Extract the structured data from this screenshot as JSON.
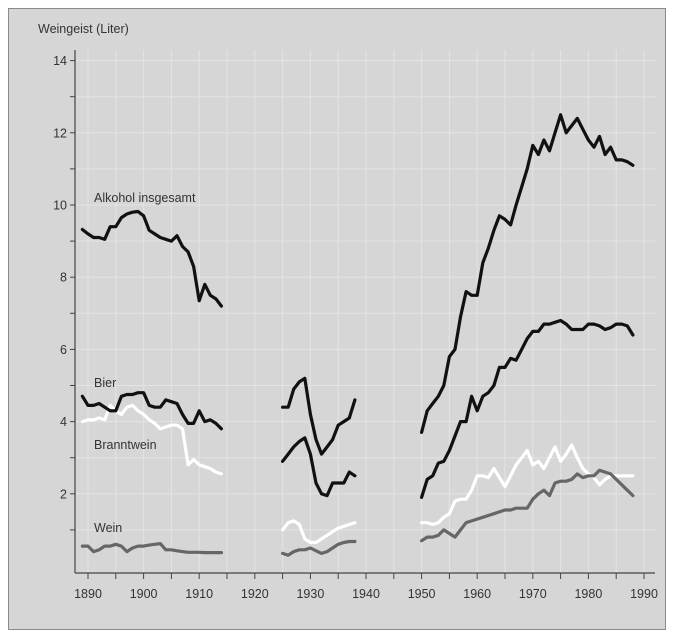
{
  "chart_data": {
    "type": "line",
    "title": "",
    "ylabel": "Weingeist (Liter)",
    "xlabel": "",
    "xlim": [
      1888,
      1992
    ],
    "ylim": [
      0,
      14.5
    ],
    "x_ticks": [
      1890,
      1900,
      1910,
      1920,
      1930,
      1940,
      1950,
      1960,
      1970,
      1980,
      1990
    ],
    "y_ticks": [
      2,
      4,
      6,
      8,
      10,
      12,
      14
    ],
    "grid": true,
    "legend": "inline labels",
    "series": [
      {
        "name": "Alkohol insgesamt",
        "color": "#111111",
        "segments": [
          {
            "start": 1889,
            "values": [
              9.32,
              9.2,
              9.1,
              9.1,
              9.05,
              9.4,
              9.4,
              9.65,
              9.75,
              9.8,
              9.82,
              9.7,
              9.3,
              9.2,
              9.1,
              9.05,
              9.0,
              9.15,
              8.85,
              8.7,
              8.3,
              7.35,
              7.8,
              7.5,
              7.4,
              7.2
            ]
          },
          {
            "start": 1925,
            "values": [
              4.4,
              4.4,
              4.9,
              5.1,
              5.2,
              4.2,
              3.5,
              3.1,
              3.3,
              3.5,
              3.9,
              4.0,
              4.1,
              4.6
            ]
          },
          {
            "start": 1950,
            "values": [
              3.7,
              4.3,
              4.5,
              4.7,
              5.0,
              5.8,
              6.0,
              6.9,
              7.6,
              7.5,
              7.5,
              8.4,
              8.8,
              9.3,
              9.7,
              9.6,
              9.45,
              10.0,
              10.5,
              11.0,
              11.65,
              11.4,
              11.8,
              11.5,
              12.0,
              12.5,
              12.0,
              12.2,
              12.4,
              12.1,
              11.8,
              11.6,
              11.9,
              11.4,
              11.6,
              11.25,
              11.25,
              11.2,
              11.1
            ]
          }
        ]
      },
      {
        "name": "Bier",
        "color": "#111111",
        "segments": [
          {
            "start": 1889,
            "values": [
              4.7,
              4.45,
              4.45,
              4.5,
              4.4,
              4.3,
              4.3,
              4.7,
              4.75,
              4.75,
              4.8,
              4.8,
              4.45,
              4.4,
              4.4,
              4.6,
              4.55,
              4.5,
              4.2,
              3.95,
              3.95,
              4.3,
              4.0,
              4.05,
              3.95,
              3.8
            ]
          },
          {
            "start": 1925,
            "values": [
              2.9,
              3.1,
              3.3,
              3.45,
              3.55,
              3.1,
              2.3,
              2.0,
              1.95,
              2.3,
              2.3,
              2.3,
              2.6,
              2.5
            ]
          },
          {
            "start": 1950,
            "values": [
              1.9,
              2.4,
              2.5,
              2.85,
              2.9,
              3.2,
              3.6,
              4.0,
              4.0,
              4.7,
              4.3,
              4.7,
              4.8,
              5.0,
              5.5,
              5.5,
              5.75,
              5.7,
              6.0,
              6.3,
              6.5,
              6.5,
              6.7,
              6.7,
              6.75,
              6.8,
              6.7,
              6.55,
              6.55,
              6.55,
              6.7,
              6.7,
              6.65,
              6.55,
              6.6,
              6.7,
              6.7,
              6.65,
              6.4
            ]
          }
        ]
      },
      {
        "name": "Branntwein",
        "color": "#ffffff",
        "segments": [
          {
            "start": 1889,
            "values": [
              4.0,
              4.05,
              4.05,
              4.1,
              4.05,
              4.45,
              4.3,
              4.2,
              4.4,
              4.45,
              4.3,
              4.2,
              4.05,
              3.95,
              3.8,
              3.85,
              3.9,
              3.9,
              3.8,
              2.8,
              2.95,
              2.8,
              2.75,
              2.7,
              2.6,
              2.55
            ]
          },
          {
            "start": 1925,
            "values": [
              1.0,
              1.2,
              1.25,
              1.15,
              0.75,
              0.65,
              0.65,
              0.75,
              0.85,
              0.95,
              1.05,
              1.1,
              1.15,
              1.2
            ]
          },
          {
            "start": 1950,
            "values": [
              1.2,
              1.2,
              1.15,
              1.2,
              1.35,
              1.45,
              1.8,
              1.85,
              1.85,
              2.1,
              2.5,
              2.5,
              2.45,
              2.7,
              2.45,
              2.2,
              2.5,
              2.8,
              3.0,
              3.2,
              2.8,
              2.9,
              2.7,
              3.0,
              3.3,
              2.9,
              3.1,
              3.35,
              3.0,
              2.7,
              2.55,
              2.45,
              2.25,
              2.4,
              2.5,
              2.5,
              2.5,
              2.5,
              2.5
            ]
          }
        ]
      },
      {
        "name": "Wein",
        "color": "#666666",
        "segments": [
          {
            "start": 1889,
            "values": [
              0.55,
              0.55,
              0.4,
              0.45,
              0.55,
              0.55,
              0.6,
              0.55,
              0.4,
              0.5,
              0.55,
              0.55,
              0.58,
              0.6,
              0.62,
              0.45,
              0.45,
              0.42,
              0.4,
              0.38,
              0.38,
              0.38,
              0.37,
              0.37,
              0.37,
              0.37
            ]
          },
          {
            "start": 1925,
            "values": [
              0.35,
              0.3,
              0.4,
              0.45,
              0.45,
              0.5,
              0.42,
              0.35,
              0.4,
              0.5,
              0.6,
              0.65,
              0.68,
              0.68
            ]
          },
          {
            "start": 1950,
            "values": [
              0.7,
              0.8,
              0.8,
              0.85,
              1.0,
              0.9,
              0.8,
              1.0,
              1.2,
              1.25,
              1.3,
              1.35,
              1.4,
              1.45,
              1.5,
              1.55,
              1.55,
              1.6,
              1.6,
              1.6,
              1.85,
              2.0,
              2.1,
              1.95,
              2.3,
              2.35,
              2.35,
              2.4,
              2.55,
              2.45,
              2.5,
              2.5,
              2.65,
              2.6,
              2.55,
              2.4,
              2.25,
              2.1,
              1.95
            ]
          }
        ]
      }
    ]
  }
}
